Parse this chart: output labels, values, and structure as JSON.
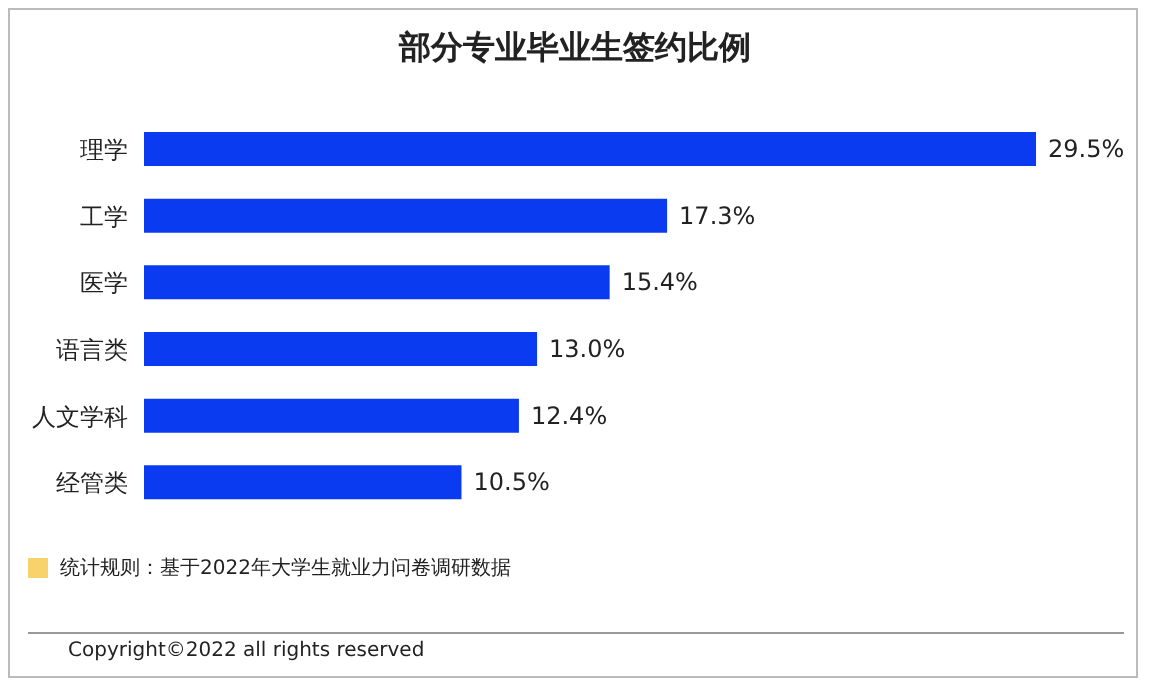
{
  "chart_data": {
    "type": "bar",
    "orientation": "horizontal",
    "title": "部分专业毕业生签约比例",
    "categories": [
      "理学",
      "工学",
      "医学",
      "语言类",
      "人文学科",
      "经管类"
    ],
    "values": [
      29.5,
      17.3,
      15.4,
      13.0,
      12.4,
      10.5
    ],
    "value_labels": [
      "29.5%",
      "17.3%",
      "15.4%",
      "13.0%",
      "12.4%",
      "10.5%"
    ],
    "color": "#0b3bf0",
    "annotations": [
      "统计规则：基于2022年大学生就业力问卷调研数据",
      "Copyright©2022 all rights reserved"
    ]
  }
}
